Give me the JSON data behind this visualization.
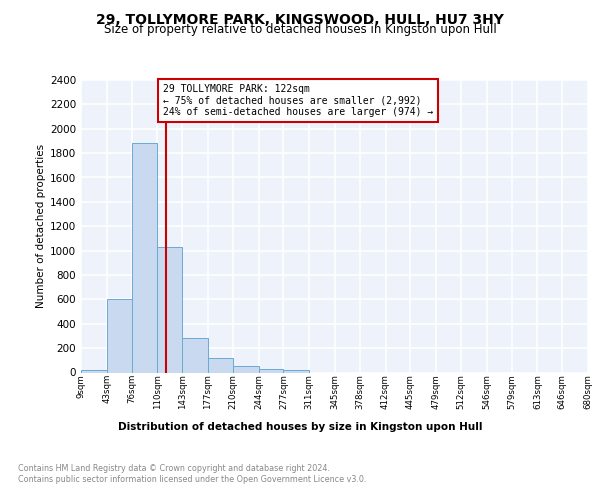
{
  "title1": "29, TOLLYMORE PARK, KINGSWOOD, HULL, HU7 3HY",
  "title2": "Size of property relative to detached houses in Kingston upon Hull",
  "xlabel": "Distribution of detached houses by size in Kingston upon Hull",
  "ylabel": "Number of detached properties",
  "bin_labels": [
    "9sqm",
    "43sqm",
    "76sqm",
    "110sqm",
    "143sqm",
    "177sqm",
    "210sqm",
    "244sqm",
    "277sqm",
    "311sqm",
    "345sqm",
    "378sqm",
    "412sqm",
    "445sqm",
    "479sqm",
    "512sqm",
    "546sqm",
    "579sqm",
    "613sqm",
    "646sqm",
    "680sqm"
  ],
  "bin_edges": [
    9,
    43,
    76,
    110,
    143,
    177,
    210,
    244,
    277,
    311,
    345,
    378,
    412,
    445,
    479,
    512,
    546,
    579,
    613,
    646,
    680
  ],
  "bar_heights": [
    20,
    600,
    1880,
    1030,
    285,
    120,
    50,
    25,
    20,
    0,
    0,
    0,
    0,
    0,
    0,
    0,
    0,
    0,
    0,
    0
  ],
  "bar_color": "#c9daf0",
  "bar_edge_color": "#6aaad4",
  "property_size": 122,
  "vline_color": "#cc0000",
  "annotation_title": "29 TOLLYMORE PARK: 122sqm",
  "annotation_line1": "← 75% of detached houses are smaller (2,992)",
  "annotation_line2": "24% of semi-detached houses are larger (974) →",
  "annotation_box_color": "#cc0000",
  "ylim": [
    0,
    2400
  ],
  "yticks": [
    0,
    200,
    400,
    600,
    800,
    1000,
    1200,
    1400,
    1600,
    1800,
    2000,
    2200,
    2400
  ],
  "footer1": "Contains HM Land Registry data © Crown copyright and database right 2024.",
  "footer2": "Contains public sector information licensed under the Open Government Licence v3.0.",
  "bg_color": "#edf2fb",
  "grid_color": "#ffffff",
  "title1_fontsize": 10,
  "title2_fontsize": 8.5
}
